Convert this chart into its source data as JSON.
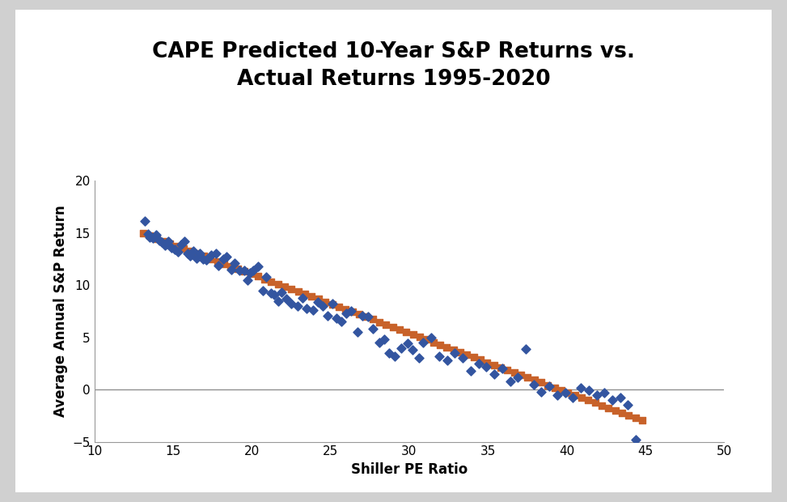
{
  "title": "CAPE Predicted 10-Year S&P Returns vs.\nActual Returns 1995-2020",
  "xlabel": "Shiller PE Ratio",
  "ylabel": "Average Annual S&P Return",
  "xlim": [
    10,
    50
  ],
  "ylim": [
    -5,
    20
  ],
  "xticks": [
    10,
    15,
    20,
    25,
    30,
    35,
    40,
    45,
    50
  ],
  "yticks": [
    -5,
    0,
    5,
    10,
    15,
    20
  ],
  "actual_color": "#3355a0",
  "predicted_color": "#c8622a",
  "title_fontsize": 19,
  "axis_label_fontsize": 12,
  "tick_fontsize": 11,
  "predicted_slope": -0.565,
  "predicted_intercept": 22.35,
  "predicted_x_min": 13.1,
  "predicted_x_max": 44.8,
  "predicted_n_points": 75,
  "actual_x": [
    13.2,
    13.4,
    13.5,
    13.7,
    13.9,
    14.1,
    14.3,
    14.5,
    14.7,
    14.9,
    15.1,
    15.3,
    15.5,
    15.7,
    15.9,
    16.1,
    16.3,
    16.5,
    16.7,
    16.9,
    17.1,
    17.4,
    17.7,
    17.9,
    18.2,
    18.4,
    18.7,
    18.9,
    19.2,
    19.5,
    19.7,
    19.9,
    20.1,
    20.4,
    20.7,
    20.9,
    21.2,
    21.4,
    21.7,
    21.9,
    22.2,
    22.5,
    22.9,
    23.2,
    23.5,
    23.9,
    24.2,
    24.5,
    24.8,
    25.1,
    25.4,
    25.7,
    26.0,
    26.3,
    26.7,
    27.0,
    27.4,
    27.7,
    28.1,
    28.4,
    28.7,
    29.1,
    29.5,
    29.9,
    30.2,
    30.6,
    30.9,
    31.4,
    31.9,
    32.4,
    32.9,
    33.4,
    33.9,
    34.4,
    34.9,
    35.4,
    35.9,
    36.4,
    36.9,
    37.4,
    37.9,
    38.4,
    38.9,
    39.4,
    39.9,
    40.4,
    40.9,
    41.4,
    41.9,
    42.4,
    42.9,
    43.4,
    43.9,
    44.4
  ],
  "actual_y": [
    16.1,
    14.9,
    14.6,
    14.5,
    14.8,
    14.3,
    14.1,
    13.8,
    14.2,
    13.6,
    13.4,
    13.2,
    13.9,
    14.2,
    13.0,
    12.8,
    13.3,
    12.6,
    13.0,
    12.5,
    12.4,
    12.9,
    13.0,
    11.9,
    12.5,
    12.7,
    11.5,
    12.1,
    11.4,
    11.4,
    10.5,
    11.2,
    11.4,
    11.8,
    9.5,
    10.8,
    9.2,
    9.1,
    8.5,
    9.3,
    8.7,
    8.2,
    8.0,
    8.8,
    7.8,
    7.6,
    8.4,
    8.0,
    7.1,
    8.2,
    6.8,
    6.5,
    7.3,
    7.5,
    5.5,
    7.1,
    7.0,
    5.8,
    4.5,
    4.8,
    3.5,
    3.2,
    4.0,
    4.4,
    3.8,
    3.0,
    4.5,
    5.0,
    3.2,
    2.8,
    3.5,
    3.0,
    1.8,
    2.5,
    2.2,
    1.5,
    2.0,
    0.8,
    1.2,
    3.9,
    0.5,
    -0.2,
    0.3,
    -0.5,
    -0.3,
    -0.8,
    0.2,
    -0.1,
    -0.5,
    -0.3,
    -1.0,
    -0.8,
    -1.5,
    -4.8
  ]
}
